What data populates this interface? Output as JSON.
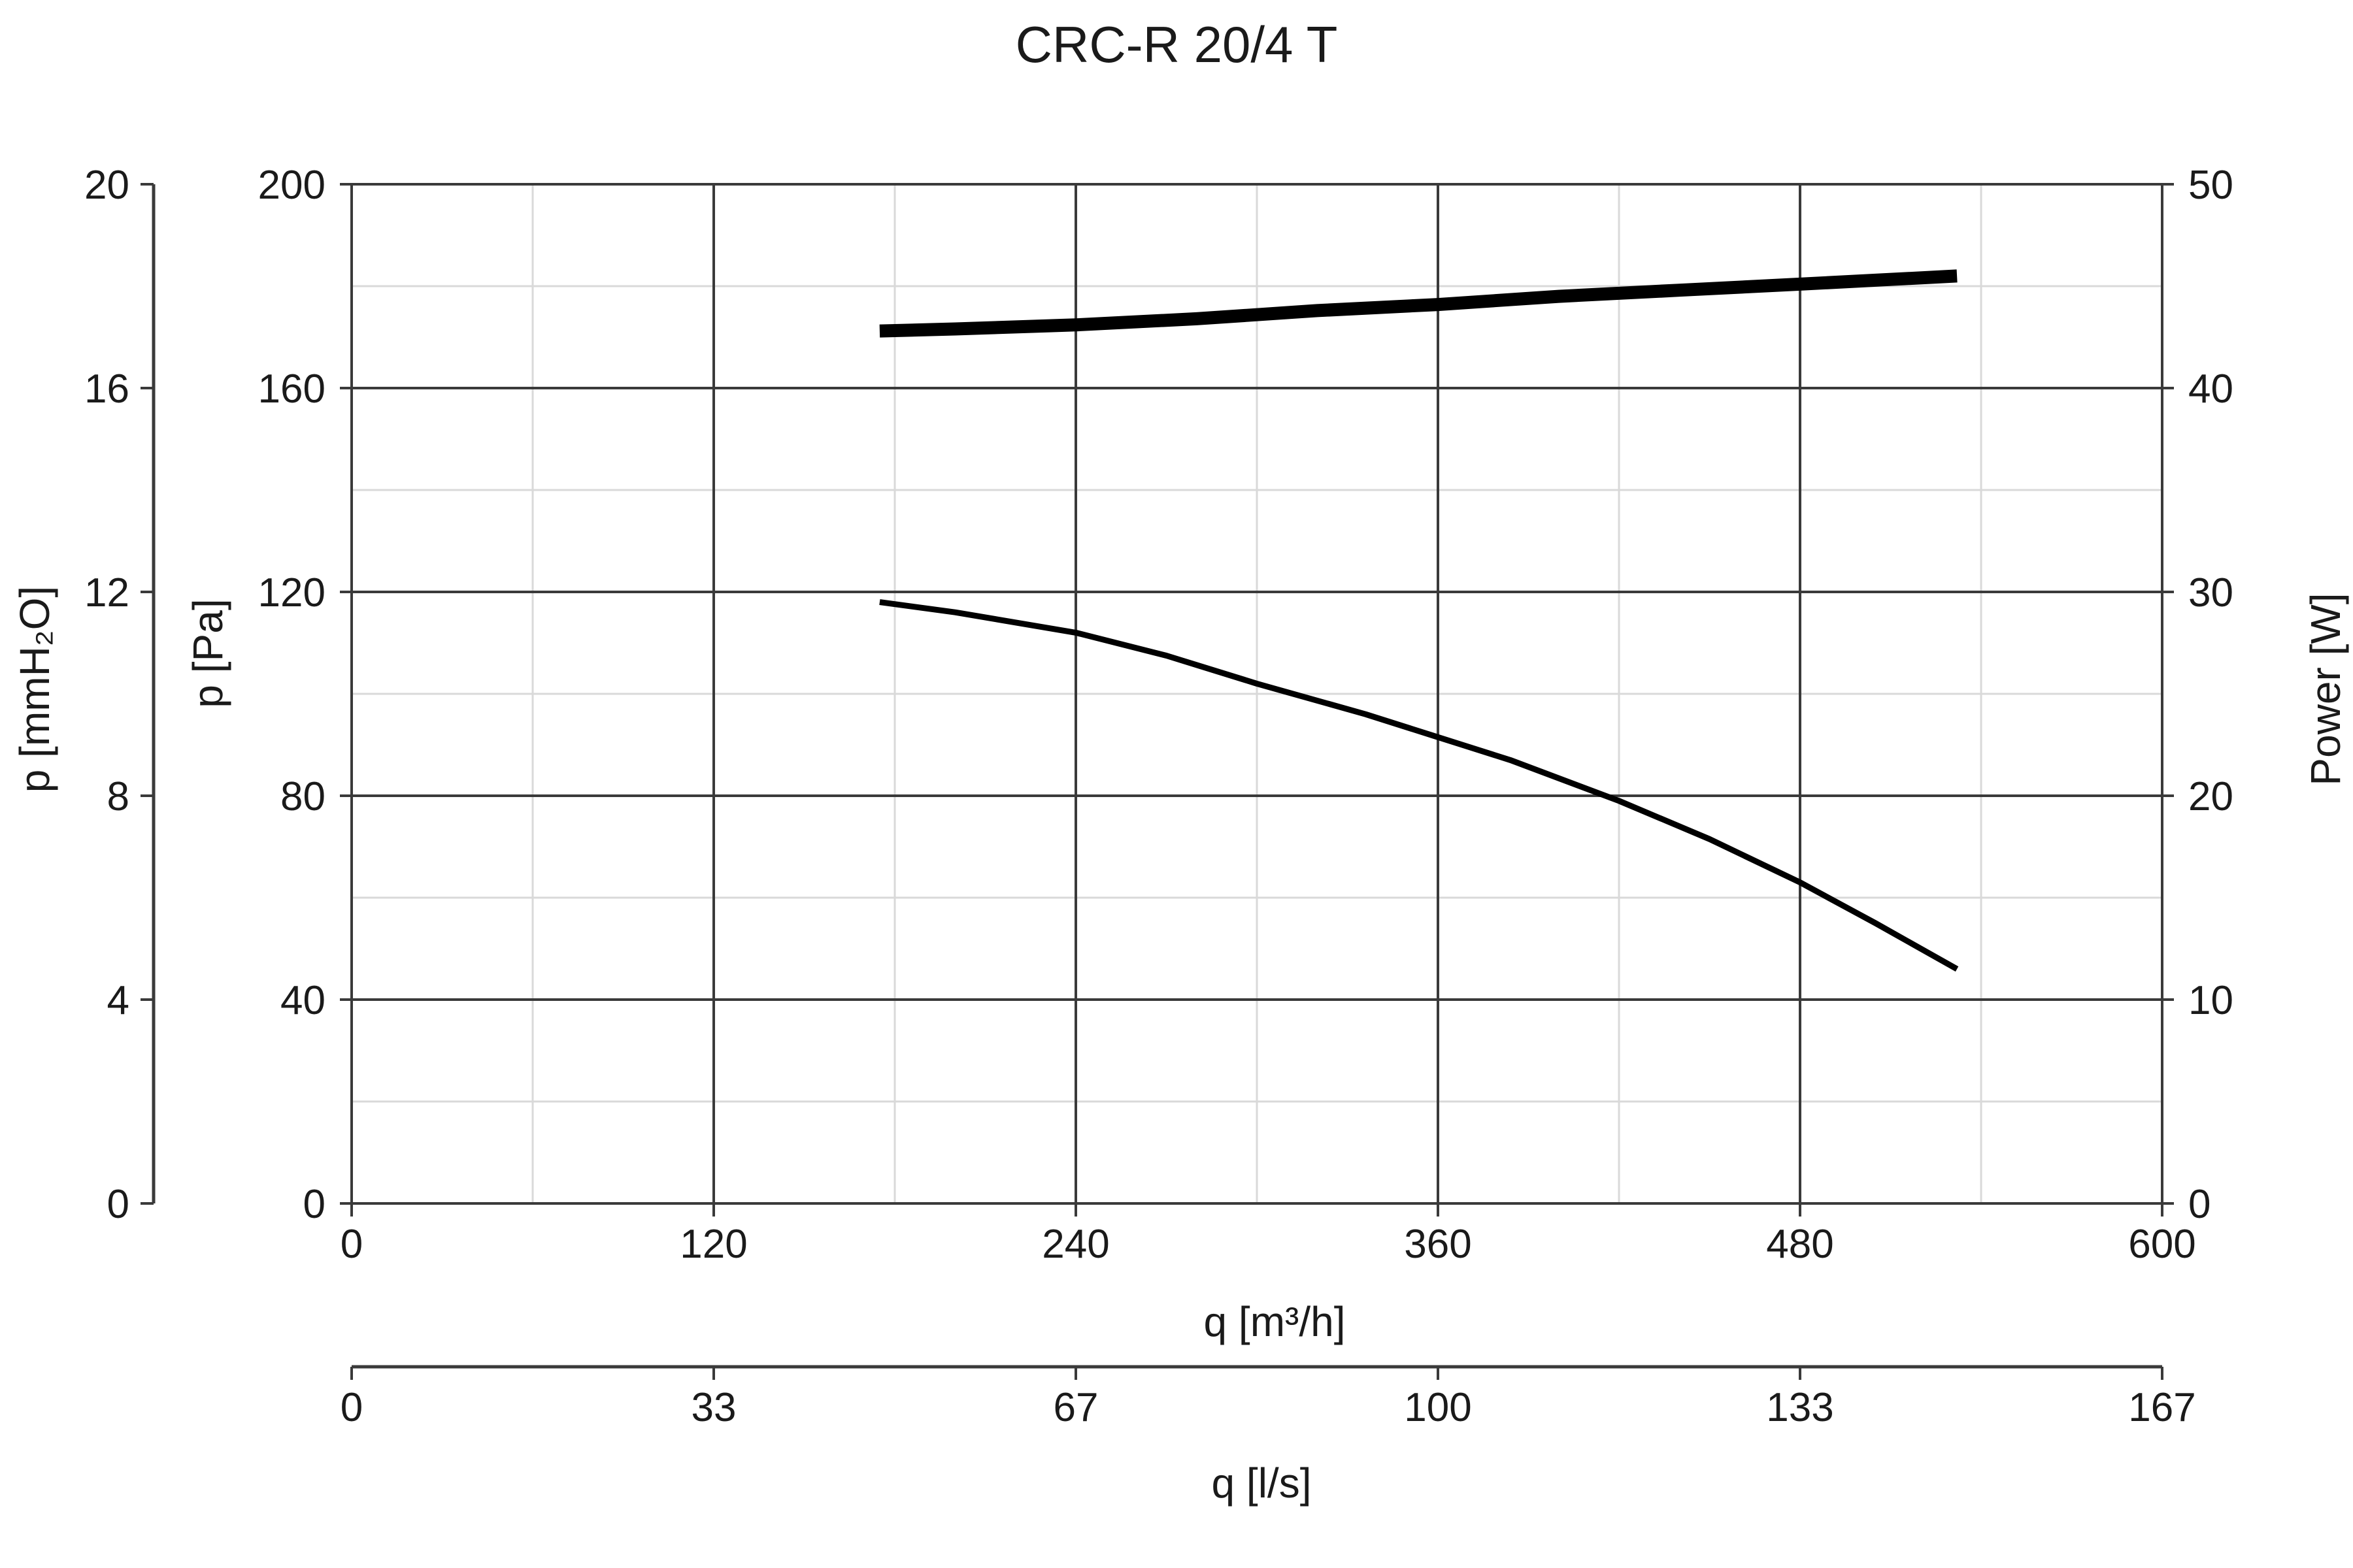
{
  "chart_data": {
    "type": "line",
    "title": "CRC-R 20/4 T",
    "x_axis": {
      "label": "q [m³/h]",
      "range": [
        0,
        600
      ],
      "ticks": [
        0,
        120,
        240,
        360,
        480,
        600
      ],
      "minor_ticks": [
        60,
        180,
        300,
        420,
        540
      ]
    },
    "x2_axis": {
      "label": "q [l/s]",
      "range": [
        0,
        166.67
      ],
      "tick_labels": [
        "0",
        "33",
        "67",
        "100",
        "133",
        "167"
      ]
    },
    "y_axis": {
      "label": "p [Pa]",
      "range": [
        0,
        200
      ],
      "ticks": [
        0,
        40,
        80,
        120,
        160,
        200
      ],
      "minor_ticks": [
        20,
        60,
        100,
        140,
        180
      ]
    },
    "y_axis_mmh2o": {
      "label": "p [mmH₂O]",
      "range": [
        0,
        20
      ],
      "ticks": [
        0,
        4,
        8,
        12,
        16,
        20
      ]
    },
    "y2_axis": {
      "label": "Power [W]",
      "range": [
        0,
        50
      ],
      "ticks": [
        0,
        10,
        20,
        30,
        40,
        50
      ]
    },
    "grid": true,
    "series": [
      {
        "axis": "y",
        "color": "#000000",
        "points": [
          [
            175,
            118
          ],
          [
            200,
            116
          ],
          [
            240,
            112
          ],
          [
            270,
            107.5
          ],
          [
            300,
            102
          ],
          [
            336,
            96
          ],
          [
            360,
            91.5
          ],
          [
            384,
            87
          ],
          [
            420,
            79
          ],
          [
            450,
            71.5
          ],
          [
            480,
            63
          ],
          [
            505,
            55
          ],
          [
            532,
            46
          ]
        ]
      },
      {
        "axis": "y2",
        "color": "#000000",
        "points": [
          [
            175,
            42.8
          ],
          [
            200,
            42.9
          ],
          [
            240,
            43.1
          ],
          [
            280,
            43.4
          ],
          [
            320,
            43.8
          ],
          [
            360,
            44.1
          ],
          [
            400,
            44.5
          ],
          [
            440,
            44.8
          ],
          [
            480,
            45.1
          ],
          [
            532,
            45.5
          ]
        ]
      }
    ]
  }
}
